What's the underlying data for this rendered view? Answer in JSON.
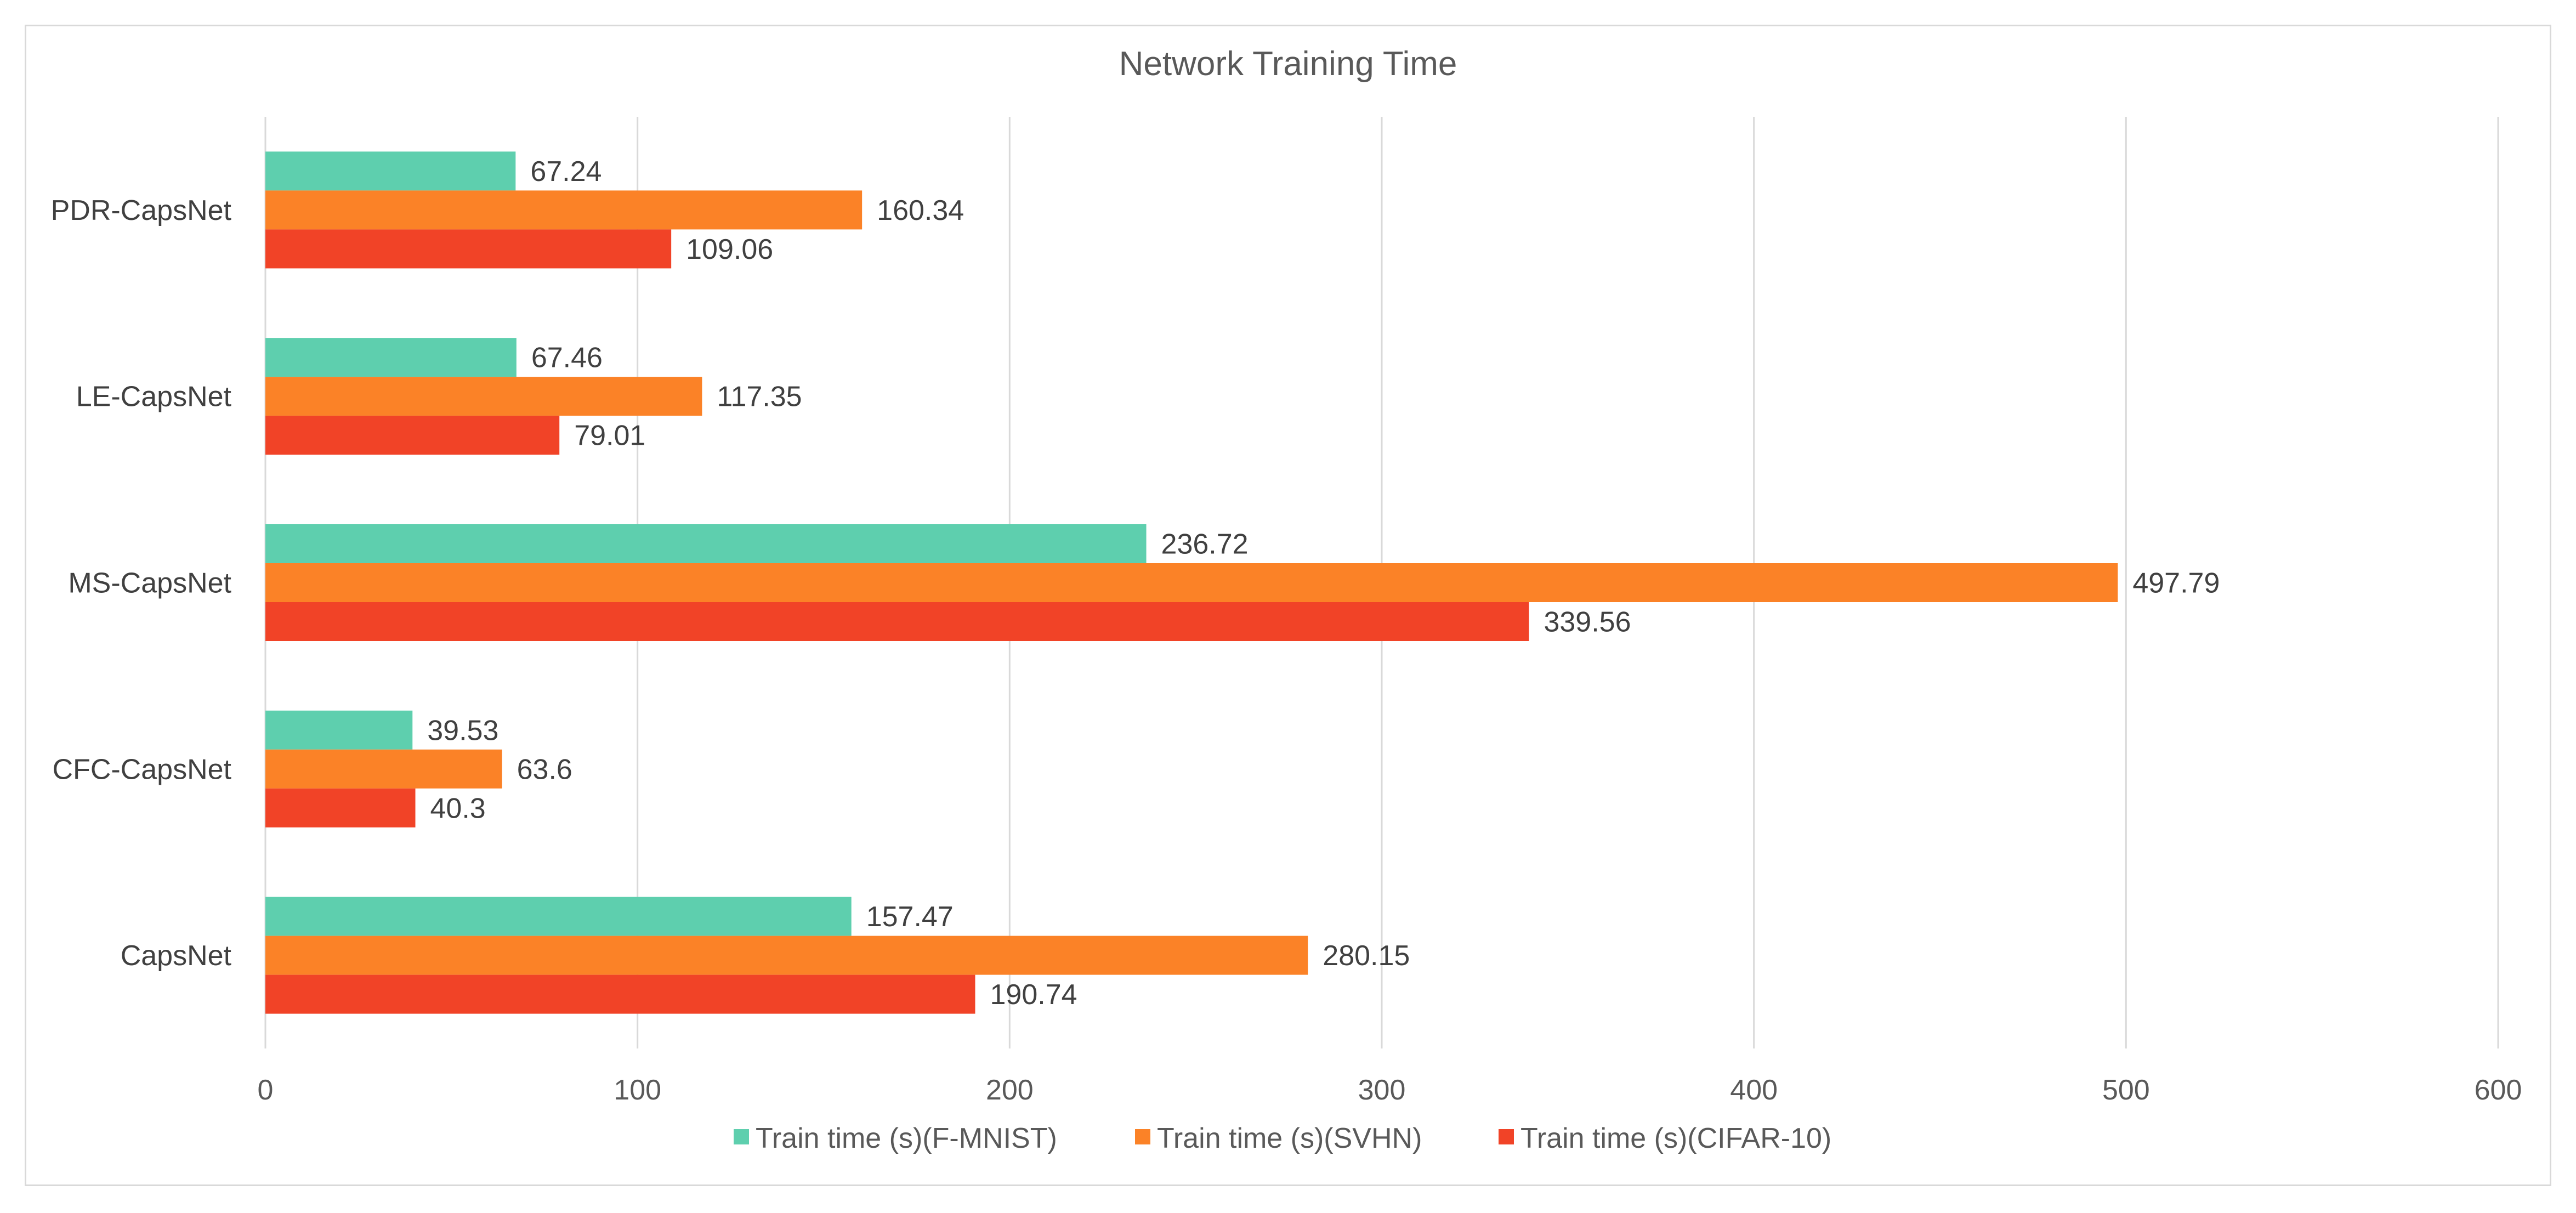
{
  "chart_data": {
    "type": "bar",
    "orientation": "horizontal",
    "title": "Network Training Time",
    "categories": [
      "PDR-CapsNet",
      "LE-CapsNet",
      "MS-CapsNet",
      "CFC-CapsNet",
      "CapsNet"
    ],
    "series": [
      {
        "name": "Train time (s)(F-MNIST)",
        "color": "#5ecfae",
        "values": [
          67.24,
          67.46,
          236.72,
          39.53,
          157.47
        ]
      },
      {
        "name": "Train time (s)(SVHN)",
        "color": "#fb8227",
        "values": [
          160.34,
          117.35,
          497.79,
          63.6,
          280.15
        ]
      },
      {
        "name": "Train time (s)(CIFAR-10)",
        "color": "#f14327",
        "values": [
          109.06,
          79.01,
          339.56,
          40.3,
          190.74
        ]
      }
    ],
    "xlim": [
      0,
      600
    ],
    "xticks": [
      0,
      100,
      200,
      300,
      400,
      500,
      600
    ],
    "grid": true,
    "legend_position": "bottom",
    "data_labels": true
  }
}
